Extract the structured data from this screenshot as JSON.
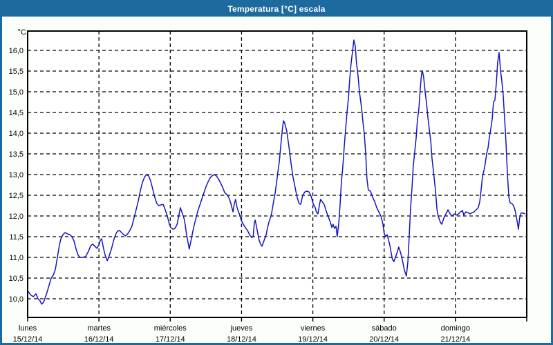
{
  "window": {
    "title": "Temperatura [°C] escala"
  },
  "colors": {
    "frame_blue": "#1d6a9f",
    "window_bg": "#fbfefa",
    "plot_bg": "#ffffff",
    "grid": "#000000",
    "text": "#000000",
    "line": "#1414be"
  },
  "chart_data": {
    "type": "line",
    "title": "Temperatura [°C] escala",
    "grid": "dashed",
    "legend": "none",
    "y_axis": {
      "unit": "°C",
      "max": 16.0,
      "min": 10.0,
      "step": 0.5,
      "tick_labels": [
        "16,0",
        "15,5",
        "15,0",
        "14,5",
        "14,0",
        "13,5",
        "13,0",
        "12,5",
        "12,0",
        "11,5",
        "11,0",
        "10,5",
        "10,0"
      ],
      "range_shown": [
        9.55,
        16.47
      ]
    },
    "x_axis": {
      "hours_span": 168,
      "days": [
        {
          "name": "lunes",
          "date": "15/12/14"
        },
        {
          "name": "martes",
          "date": "16/12/14"
        },
        {
          "name": "miércoles",
          "date": "17/12/14"
        },
        {
          "name": "jueves",
          "date": "18/12/14"
        },
        {
          "name": "viernes",
          "date": "19/12/14"
        },
        {
          "name": "sábado",
          "date": "20/12/14"
        },
        {
          "name": "domingo",
          "date": "21/12/14"
        }
      ]
    },
    "series": [
      {
        "name": "Temperatura",
        "color": "#1414be",
        "points": [
          [
            0.0,
            10.2
          ],
          [
            0.9,
            10.1
          ],
          [
            1.9,
            10.05
          ],
          [
            2.8,
            10.12
          ],
          [
            3.5,
            10.0
          ],
          [
            4.2,
            9.95
          ],
          [
            4.7,
            9.87
          ],
          [
            5.4,
            9.92
          ],
          [
            5.8,
            10.0
          ],
          [
            6.5,
            10.15
          ],
          [
            7.2,
            10.32
          ],
          [
            7.9,
            10.5
          ],
          [
            8.6,
            10.57
          ],
          [
            9.3,
            10.7
          ],
          [
            10.0,
            11.0
          ],
          [
            10.7,
            11.3
          ],
          [
            11.2,
            11.45
          ],
          [
            11.9,
            11.55
          ],
          [
            12.6,
            11.6
          ],
          [
            13.3,
            11.57
          ],
          [
            14.2,
            11.55
          ],
          [
            14.9,
            11.5
          ],
          [
            15.6,
            11.4
          ],
          [
            16.3,
            11.2
          ],
          [
            17.0,
            11.05
          ],
          [
            17.7,
            11.0
          ],
          [
            18.6,
            11.0
          ],
          [
            19.5,
            11.02
          ],
          [
            20.5,
            11.15
          ],
          [
            21.2,
            11.28
          ],
          [
            21.9,
            11.32
          ],
          [
            22.6,
            11.27
          ],
          [
            23.3,
            11.22
          ],
          [
            24.0,
            11.3
          ],
          [
            24.4,
            11.4
          ],
          [
            24.9,
            11.45
          ],
          [
            25.6,
            11.2
          ],
          [
            26.1,
            11.05
          ],
          [
            26.8,
            10.92
          ],
          [
            27.5,
            11.05
          ],
          [
            28.2,
            11.2
          ],
          [
            28.9,
            11.4
          ],
          [
            29.6,
            11.55
          ],
          [
            30.2,
            11.63
          ],
          [
            30.9,
            11.65
          ],
          [
            31.6,
            11.6
          ],
          [
            32.3,
            11.55
          ],
          [
            33.0,
            11.52
          ],
          [
            33.7,
            11.57
          ],
          [
            34.4,
            11.65
          ],
          [
            35.1,
            11.75
          ],
          [
            35.8,
            11.95
          ],
          [
            36.5,
            12.15
          ],
          [
            37.2,
            12.35
          ],
          [
            37.9,
            12.6
          ],
          [
            38.6,
            12.8
          ],
          [
            39.3,
            12.93
          ],
          [
            40.0,
            13.0
          ],
          [
            40.7,
            12.97
          ],
          [
            41.4,
            12.85
          ],
          [
            42.1,
            12.65
          ],
          [
            42.8,
            12.45
          ],
          [
            43.5,
            12.3
          ],
          [
            44.2,
            12.25
          ],
          [
            44.9,
            12.27
          ],
          [
            45.6,
            12.28
          ],
          [
            46.3,
            12.15
          ],
          [
            47.0,
            12.0
          ],
          [
            47.7,
            11.8
          ],
          [
            48.2,
            11.72
          ],
          [
            48.9,
            11.68
          ],
          [
            49.6,
            11.7
          ],
          [
            50.3,
            11.8
          ],
          [
            51.0,
            12.05
          ],
          [
            51.4,
            12.2
          ],
          [
            51.9,
            12.1
          ],
          [
            52.6,
            11.95
          ],
          [
            53.0,
            11.8
          ],
          [
            53.5,
            11.55
          ],
          [
            54.0,
            11.35
          ],
          [
            54.4,
            11.2
          ],
          [
            55.1,
            11.45
          ],
          [
            55.8,
            11.7
          ],
          [
            56.5,
            11.9
          ],
          [
            57.2,
            12.1
          ],
          [
            57.9,
            12.25
          ],
          [
            58.6,
            12.4
          ],
          [
            59.3,
            12.55
          ],
          [
            60.0,
            12.7
          ],
          [
            60.7,
            12.82
          ],
          [
            61.4,
            12.92
          ],
          [
            62.1,
            12.97
          ],
          [
            62.8,
            13.0
          ],
          [
            63.5,
            12.97
          ],
          [
            64.2,
            12.9
          ],
          [
            64.9,
            12.8
          ],
          [
            65.6,
            12.7
          ],
          [
            66.3,
            12.57
          ],
          [
            67.0,
            12.52
          ],
          [
            67.7,
            12.45
          ],
          [
            68.2,
            12.35
          ],
          [
            68.6,
            12.25
          ],
          [
            69.1,
            12.1
          ],
          [
            69.6,
            12.3
          ],
          [
            70.0,
            12.4
          ],
          [
            70.5,
            12.2
          ],
          [
            71.0,
            12.1
          ],
          [
            71.4,
            12.02
          ],
          [
            71.9,
            11.9
          ],
          [
            72.6,
            11.8
          ],
          [
            73.3,
            11.72
          ],
          [
            74.0,
            11.65
          ],
          [
            74.7,
            11.55
          ],
          [
            75.4,
            11.48
          ],
          [
            75.9,
            11.5
          ],
          [
            76.3,
            11.83
          ],
          [
            76.6,
            11.9
          ],
          [
            77.2,
            11.68
          ],
          [
            77.9,
            11.42
          ],
          [
            78.4,
            11.32
          ],
          [
            78.9,
            11.27
          ],
          [
            79.3,
            11.35
          ],
          [
            79.8,
            11.45
          ],
          [
            80.3,
            11.55
          ],
          [
            80.7,
            11.7
          ],
          [
            81.2,
            11.85
          ],
          [
            81.7,
            11.95
          ],
          [
            82.1,
            12.05
          ],
          [
            82.8,
            12.35
          ],
          [
            83.3,
            12.55
          ],
          [
            83.8,
            12.8
          ],
          [
            84.2,
            13.05
          ],
          [
            84.7,
            13.3
          ],
          [
            85.2,
            13.7
          ],
          [
            85.6,
            14.0
          ],
          [
            86.1,
            14.3
          ],
          [
            86.5,
            14.25
          ],
          [
            87.2,
            14.05
          ],
          [
            87.9,
            13.7
          ],
          [
            88.6,
            13.3
          ],
          [
            89.3,
            12.95
          ],
          [
            90.0,
            12.7
          ],
          [
            90.7,
            12.45
          ],
          [
            91.4,
            12.3
          ],
          [
            91.9,
            12.28
          ],
          [
            92.6,
            12.5
          ],
          [
            93.3,
            12.58
          ],
          [
            94.0,
            12.6
          ],
          [
            94.7,
            12.58
          ],
          [
            95.4,
            12.48
          ],
          [
            96.1,
            12.3
          ],
          [
            96.8,
            12.2
          ],
          [
            97.2,
            12.1
          ],
          [
            97.7,
            12.05
          ],
          [
            98.2,
            12.25
          ],
          [
            98.6,
            12.4
          ],
          [
            99.1,
            12.35
          ],
          [
            99.8,
            12.28
          ],
          [
            100.5,
            12.12
          ],
          [
            101.2,
            11.98
          ],
          [
            101.9,
            11.85
          ],
          [
            102.4,
            11.72
          ],
          [
            102.8,
            11.8
          ],
          [
            103.3,
            11.7
          ],
          [
            103.8,
            11.75
          ],
          [
            104.2,
            11.5
          ],
          [
            104.7,
            11.8
          ],
          [
            105.2,
            12.3
          ],
          [
            105.6,
            12.8
          ],
          [
            106.1,
            13.2
          ],
          [
            106.6,
            13.7
          ],
          [
            107.0,
            14.05
          ],
          [
            107.5,
            14.5
          ],
          [
            108.0,
            14.85
          ],
          [
            108.4,
            15.3
          ],
          [
            108.9,
            15.7
          ],
          [
            109.4,
            16.0
          ],
          [
            109.8,
            16.25
          ],
          [
            110.3,
            16.1
          ],
          [
            110.7,
            15.7
          ],
          [
            111.2,
            15.4
          ],
          [
            111.7,
            15.0
          ],
          [
            112.4,
            14.6
          ],
          [
            112.9,
            14.25
          ],
          [
            113.3,
            14.0
          ],
          [
            113.8,
            13.5
          ],
          [
            114.2,
            12.9
          ],
          [
            114.7,
            12.62
          ],
          [
            115.4,
            12.6
          ],
          [
            116.1,
            12.45
          ],
          [
            116.8,
            12.35
          ],
          [
            117.5,
            12.2
          ],
          [
            118.2,
            12.1
          ],
          [
            118.9,
            12.0
          ],
          [
            119.6,
            11.8
          ],
          [
            120.0,
            11.58
          ],
          [
            120.5,
            11.5
          ],
          [
            121.0,
            11.55
          ],
          [
            121.4,
            11.45
          ],
          [
            121.9,
            11.3
          ],
          [
            122.4,
            11.1
          ],
          [
            122.8,
            10.95
          ],
          [
            123.3,
            10.9
          ],
          [
            123.8,
            11.0
          ],
          [
            124.5,
            11.15
          ],
          [
            124.9,
            11.25
          ],
          [
            125.6,
            11.1
          ],
          [
            126.1,
            10.95
          ],
          [
            126.8,
            10.7
          ],
          [
            127.5,
            10.55
          ],
          [
            128.0,
            10.9
          ],
          [
            128.4,
            11.45
          ],
          [
            128.9,
            12.2
          ],
          [
            129.4,
            12.7
          ],
          [
            129.8,
            13.2
          ],
          [
            130.3,
            13.55
          ],
          [
            130.8,
            13.9
          ],
          [
            131.2,
            14.3
          ],
          [
            131.7,
            14.6
          ],
          [
            132.2,
            15.1
          ],
          [
            132.6,
            15.45
          ],
          [
            132.9,
            15.5
          ],
          [
            133.3,
            15.35
          ],
          [
            133.8,
            15.0
          ],
          [
            134.3,
            14.7
          ],
          [
            134.7,
            14.4
          ],
          [
            135.2,
            14.1
          ],
          [
            135.7,
            13.8
          ],
          [
            136.1,
            13.4
          ],
          [
            136.8,
            12.95
          ],
          [
            137.3,
            12.6
          ],
          [
            137.8,
            12.15
          ],
          [
            138.2,
            12.0
          ],
          [
            138.9,
            11.85
          ],
          [
            139.4,
            11.8
          ],
          [
            140.1,
            11.95
          ],
          [
            140.8,
            12.05
          ],
          [
            141.5,
            12.15
          ],
          [
            142.2,
            12.05
          ],
          [
            142.9,
            12.0
          ],
          [
            143.6,
            12.05
          ],
          [
            144.3,
            12.02
          ],
          [
            145.0,
            12.05
          ],
          [
            145.7,
            12.1
          ],
          [
            146.4,
            12.13
          ],
          [
            146.8,
            12.02
          ],
          [
            147.5,
            12.1
          ],
          [
            148.2,
            12.08
          ],
          [
            148.9,
            12.05
          ],
          [
            149.6,
            12.08
          ],
          [
            150.3,
            12.1
          ],
          [
            151.0,
            12.15
          ],
          [
            151.7,
            12.2
          ],
          [
            152.2,
            12.35
          ],
          [
            152.6,
            12.6
          ],
          [
            153.1,
            12.95
          ],
          [
            153.6,
            13.1
          ],
          [
            154.0,
            13.25
          ],
          [
            154.5,
            13.5
          ],
          [
            155.0,
            13.65
          ],
          [
            155.4,
            13.9
          ],
          [
            155.9,
            14.1
          ],
          [
            156.4,
            14.35
          ],
          [
            156.8,
            14.75
          ],
          [
            157.3,
            14.8
          ],
          [
            157.8,
            15.25
          ],
          [
            158.2,
            15.7
          ],
          [
            158.7,
            15.95
          ],
          [
            159.2,
            15.5
          ],
          [
            159.6,
            15.27
          ],
          [
            160.1,
            14.9
          ],
          [
            160.6,
            14.3
          ],
          [
            161.0,
            13.8
          ],
          [
            161.5,
            13.0
          ],
          [
            162.0,
            12.45
          ],
          [
            162.4,
            12.32
          ],
          [
            162.9,
            12.3
          ],
          [
            163.3,
            12.28
          ],
          [
            163.8,
            12.2
          ],
          [
            164.2,
            12.1
          ],
          [
            164.7,
            11.9
          ],
          [
            165.2,
            11.68
          ],
          [
            165.6,
            11.95
          ],
          [
            166.1,
            12.07
          ],
          [
            166.8,
            12.07
          ],
          [
            167.5,
            12.05
          ]
        ]
      }
    ]
  }
}
